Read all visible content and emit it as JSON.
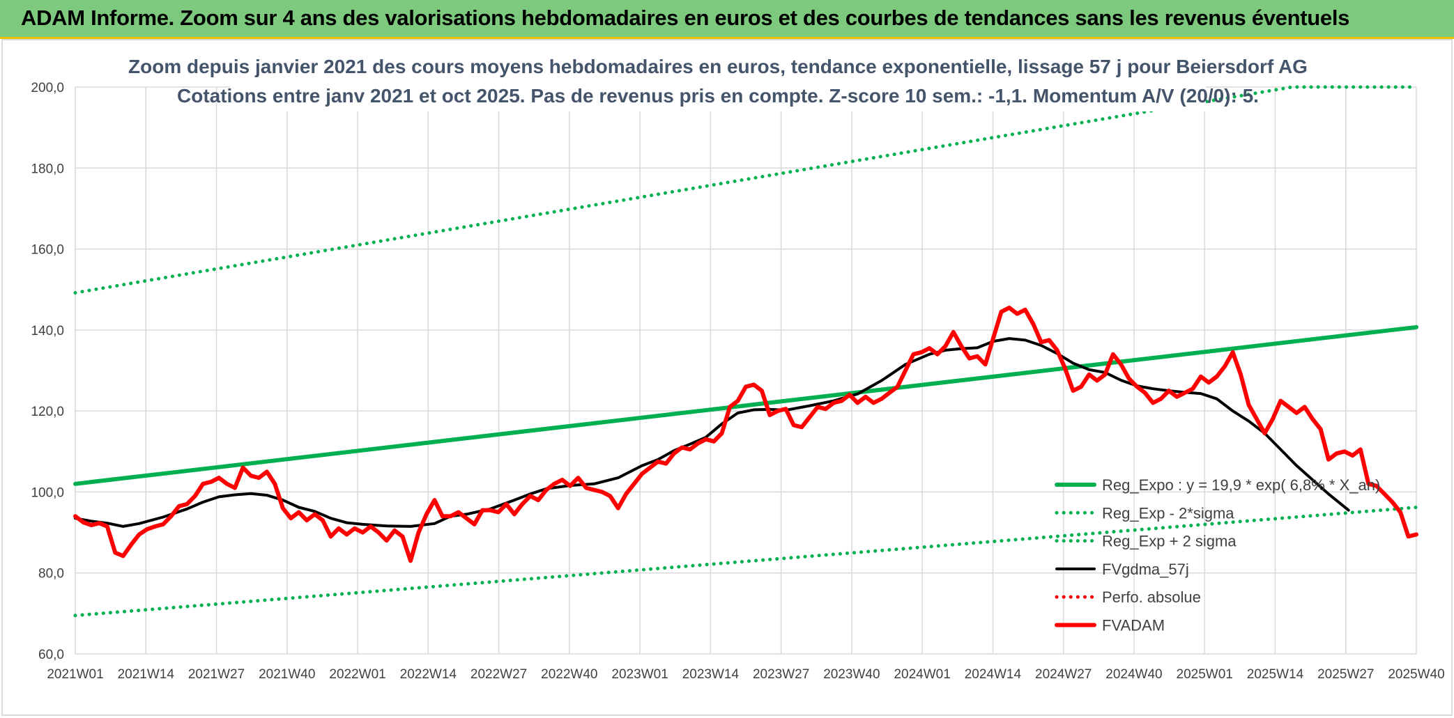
{
  "header": {
    "title": "ADAM Informe. Zoom sur 4 ans des valorisations hebdomadaires en euros et des courbes de tendances sans les revenus éventuels"
  },
  "colors": {
    "banner": "#7dc97d",
    "green": "#00b050",
    "black": "#000000",
    "red": "#ff0000",
    "grid": "#d9d9d9"
  },
  "chart_data": {
    "type": "line",
    "title": "Zoom depuis janvier 2021 des cours moyens hebdomadaires en euros, tendance exponentielle, lissage 57 j pour Beiersdorf AG",
    "subtitle": "Cotations entre janv 2021 et oct 2025. Pas de revenus pris en compte. Z-score 10 sem.: -1,1. Momentum A/V (20/0): 5.",
    "xlabel": "",
    "ylabel": "",
    "ylim": [
      60,
      200
    ],
    "yticks": [
      "60,0",
      "80,0",
      "100,0",
      "120,0",
      "140,0",
      "160,0",
      "180,0",
      "200,0"
    ],
    "x_count": 249,
    "x_tick_labels": [
      "2021W01",
      "2021W14",
      "2021W27",
      "2021W40",
      "2022W01",
      "2022W14",
      "2022W27",
      "2022W40",
      "2023W01",
      "2023W14",
      "2023W27",
      "2023W40",
      "2024W01",
      "2024W14",
      "2024W27",
      "2024W40",
      "2025W01",
      "2025W14",
      "2025W27",
      "2025W40"
    ],
    "legend_position": "bottom-right",
    "series": [
      {
        "name": "Reg_Expo : y = 19,9 * exp( 6,8% *  X_an)",
        "style": "solid-thick",
        "color": "#00b050",
        "points": [
          [
            0,
            102.0
          ],
          [
            248,
            140.7
          ]
        ]
      },
      {
        "name": "Reg_Exp - 2*sigma",
        "style": "dotted",
        "color": "#00b050",
        "points": [
          [
            0,
            69.5
          ],
          [
            248,
            96.2
          ]
        ]
      },
      {
        "name": "Reg_Exp + 2 sigma",
        "style": "dotted",
        "color": "#00b050",
        "points": [
          [
            0,
            149.2
          ],
          [
            225,
            200.0
          ],
          [
            248,
            200.0
          ]
        ]
      },
      {
        "name": "FVgdma_57j",
        "style": "solid",
        "color": "#000000",
        "points": [
          [
            0,
            93.5
          ],
          [
            4,
            92.8
          ],
          [
            8,
            92.3
          ],
          [
            12,
            91.5
          ],
          [
            16,
            92.2
          ],
          [
            22,
            93.8
          ],
          [
            28,
            95.8
          ],
          [
            32,
            97.5
          ],
          [
            36,
            98.8
          ],
          [
            40,
            99.3
          ],
          [
            44,
            99.6
          ],
          [
            48,
            99.2
          ],
          [
            52,
            98.0
          ],
          [
            56,
            96.2
          ],
          [
            60,
            95.2
          ],
          [
            64,
            93.5
          ],
          [
            68,
            92.4
          ],
          [
            72,
            92.0
          ],
          [
            78,
            91.6
          ],
          [
            84,
            91.5
          ],
          [
            90,
            92.2
          ],
          [
            94,
            94.0
          ],
          [
            98,
            94.5
          ],
          [
            104,
            95.8
          ],
          [
            110,
            98.0
          ],
          [
            114,
            99.5
          ],
          [
            118,
            100.8
          ],
          [
            124,
            101.6
          ],
          [
            130,
            102.0
          ],
          [
            136,
            103.5
          ],
          [
            142,
            106.5
          ],
          [
            146,
            108.0
          ],
          [
            150,
            110.2
          ],
          [
            154,
            111.8
          ],
          [
            158,
            113.5
          ],
          [
            162,
            116.8
          ],
          [
            166,
            119.5
          ],
          [
            170,
            120.3
          ],
          [
            174,
            120.4
          ],
          [
            178,
            120.2
          ],
          [
            184,
            121.3
          ],
          [
            190,
            122.5
          ],
          [
            196,
            124.2
          ],
          [
            202,
            127.5
          ],
          [
            208,
            131.5
          ],
          [
            214,
            134.0
          ],
          [
            218,
            135.0
          ],
          [
            222,
            135.4
          ],
          [
            226,
            135.6
          ],
          [
            230,
            137.2
          ],
          [
            234,
            137.9
          ],
          [
            238,
            137.5
          ],
          [
            242,
            136.2
          ],
          [
            246,
            134.2
          ],
          [
            250,
            131.8
          ],
          [
            254,
            130.2
          ],
          [
            258,
            129.5
          ],
          [
            262,
            127.6
          ],
          [
            266,
            126.2
          ],
          [
            270,
            125.5
          ],
          [
            274,
            125.0
          ],
          [
            278,
            124.6
          ],
          [
            282,
            124.3
          ],
          [
            286,
            123.0
          ],
          [
            290,
            120.0
          ],
          [
            294,
            117.5
          ],
          [
            298,
            114.5
          ],
          [
            302,
            110.5
          ],
          [
            306,
            106.5
          ],
          [
            310,
            103.0
          ],
          [
            314,
            99.5
          ],
          [
            319,
            95.5
          ]
        ]
      },
      {
        "name": "Perfo. absolue",
        "style": "dotted",
        "color": "#ff0000",
        "points": []
      },
      {
        "name": "FVADAM",
        "style": "solid-thick",
        "color": "#ff0000",
        "points": [
          [
            0,
            94.0
          ],
          [
            2,
            92.5
          ],
          [
            4,
            91.8
          ],
          [
            6,
            92.3
          ],
          [
            8,
            91.5
          ],
          [
            10,
            85.0
          ],
          [
            12,
            84.2
          ],
          [
            14,
            87.0
          ],
          [
            16,
            89.5
          ],
          [
            18,
            90.8
          ],
          [
            20,
            91.5
          ],
          [
            22,
            92.0
          ],
          [
            24,
            94.0
          ],
          [
            26,
            96.5
          ],
          [
            28,
            97.0
          ],
          [
            30,
            99.0
          ],
          [
            32,
            102.0
          ],
          [
            34,
            102.5
          ],
          [
            36,
            103.5
          ],
          [
            38,
            102.0
          ],
          [
            40,
            101.0
          ],
          [
            42,
            106.0
          ],
          [
            44,
            104.0
          ],
          [
            46,
            103.5
          ],
          [
            48,
            105.0
          ],
          [
            50,
            102.0
          ],
          [
            52,
            96.0
          ],
          [
            54,
            93.5
          ],
          [
            56,
            95.0
          ],
          [
            58,
            93.0
          ],
          [
            60,
            94.5
          ],
          [
            62,
            93.0
          ],
          [
            64,
            89.0
          ],
          [
            66,
            91.0
          ],
          [
            68,
            89.5
          ],
          [
            70,
            91.0
          ],
          [
            72,
            90.0
          ],
          [
            74,
            91.5
          ],
          [
            76,
            90.0
          ],
          [
            78,
            88.0
          ],
          [
            80,
            90.5
          ],
          [
            82,
            89.0
          ],
          [
            84,
            83.0
          ],
          [
            86,
            90.0
          ],
          [
            88,
            94.5
          ],
          [
            90,
            98.0
          ],
          [
            92,
            94.0
          ],
          [
            94,
            94.0
          ],
          [
            96,
            95.0
          ],
          [
            98,
            93.5
          ],
          [
            100,
            92.0
          ],
          [
            102,
            95.5
          ],
          [
            104,
            95.5
          ],
          [
            106,
            95.0
          ],
          [
            108,
            97.0
          ],
          [
            110,
            94.5
          ],
          [
            112,
            97.0
          ],
          [
            114,
            99.0
          ],
          [
            116,
            98.0
          ],
          [
            118,
            100.5
          ],
          [
            120,
            102.0
          ],
          [
            122,
            103.0
          ],
          [
            124,
            101.5
          ],
          [
            126,
            103.5
          ],
          [
            128,
            101.0
          ],
          [
            130,
            100.5
          ],
          [
            132,
            100.0
          ],
          [
            134,
            99.0
          ],
          [
            136,
            96.0
          ],
          [
            138,
            99.5
          ],
          [
            140,
            102.0
          ],
          [
            142,
            104.5
          ],
          [
            144,
            106.0
          ],
          [
            146,
            107.5
          ],
          [
            148,
            107.0
          ],
          [
            150,
            109.5
          ],
          [
            152,
            111.0
          ],
          [
            154,
            110.5
          ],
          [
            156,
            112.0
          ],
          [
            158,
            113.0
          ],
          [
            160,
            112.5
          ],
          [
            162,
            114.5
          ],
          [
            164,
            121.0
          ],
          [
            166,
            122.5
          ],
          [
            168,
            126.0
          ],
          [
            170,
            126.5
          ],
          [
            172,
            125.0
          ],
          [
            174,
            119.0
          ],
          [
            176,
            120.0
          ],
          [
            178,
            120.5
          ],
          [
            180,
            116.5
          ],
          [
            182,
            116.0
          ],
          [
            184,
            118.5
          ],
          [
            186,
            121.0
          ],
          [
            188,
            120.5
          ],
          [
            190,
            122.0
          ],
          [
            192,
            122.5
          ],
          [
            194,
            124.0
          ],
          [
            196,
            122.0
          ],
          [
            198,
            123.5
          ],
          [
            200,
            122.0
          ],
          [
            202,
            123.0
          ],
          [
            204,
            124.5
          ],
          [
            206,
            126.0
          ],
          [
            208,
            130.0
          ],
          [
            210,
            134.0
          ],
          [
            212,
            134.5
          ],
          [
            214,
            135.5
          ],
          [
            216,
            134.0
          ],
          [
            218,
            136.0
          ],
          [
            220,
            139.5
          ],
          [
            222,
            136.0
          ],
          [
            224,
            133.0
          ],
          [
            226,
            133.5
          ],
          [
            228,
            131.5
          ],
          [
            230,
            138.0
          ],
          [
            232,
            144.5
          ],
          [
            234,
            145.5
          ],
          [
            236,
            144.0
          ],
          [
            238,
            145.0
          ],
          [
            240,
            141.5
          ],
          [
            242,
            137.0
          ],
          [
            244,
            137.5
          ],
          [
            246,
            135.0
          ],
          [
            248,
            130.5
          ],
          [
            250,
            125.0
          ],
          [
            252,
            126.0
          ],
          [
            254,
            129.0
          ],
          [
            256,
            127.5
          ],
          [
            258,
            129.0
          ],
          [
            260,
            134.0
          ],
          [
            262,
            131.5
          ],
          [
            264,
            128.0
          ],
          [
            266,
            126.0
          ],
          [
            268,
            124.5
          ],
          [
            270,
            122.0
          ],
          [
            272,
            123.0
          ],
          [
            274,
            125.0
          ],
          [
            276,
            123.5
          ],
          [
            278,
            124.5
          ],
          [
            280,
            125.5
          ],
          [
            282,
            128.5
          ],
          [
            284,
            127.0
          ],
          [
            286,
            128.5
          ],
          [
            288,
            131.0
          ],
          [
            290,
            134.5
          ],
          [
            292,
            129.0
          ],
          [
            294,
            121.5
          ],
          [
            296,
            118.0
          ],
          [
            298,
            114.5
          ],
          [
            300,
            118.0
          ],
          [
            302,
            122.5
          ],
          [
            304,
            121.0
          ],
          [
            306,
            119.5
          ],
          [
            308,
            121.0
          ],
          [
            310,
            118.0
          ],
          [
            312,
            115.5
          ],
          [
            314,
            108.0
          ],
          [
            316,
            109.5
          ],
          [
            318,
            110.0
          ],
          [
            320,
            109.0
          ],
          [
            322,
            110.5
          ],
          [
            324,
            102.0
          ],
          [
            326,
            101.5
          ],
          [
            328,
            99.5
          ],
          [
            330,
            97.5
          ],
          [
            332,
            95.0
          ],
          [
            334,
            89.0
          ],
          [
            336,
            89.5
          ]
        ]
      }
    ]
  }
}
